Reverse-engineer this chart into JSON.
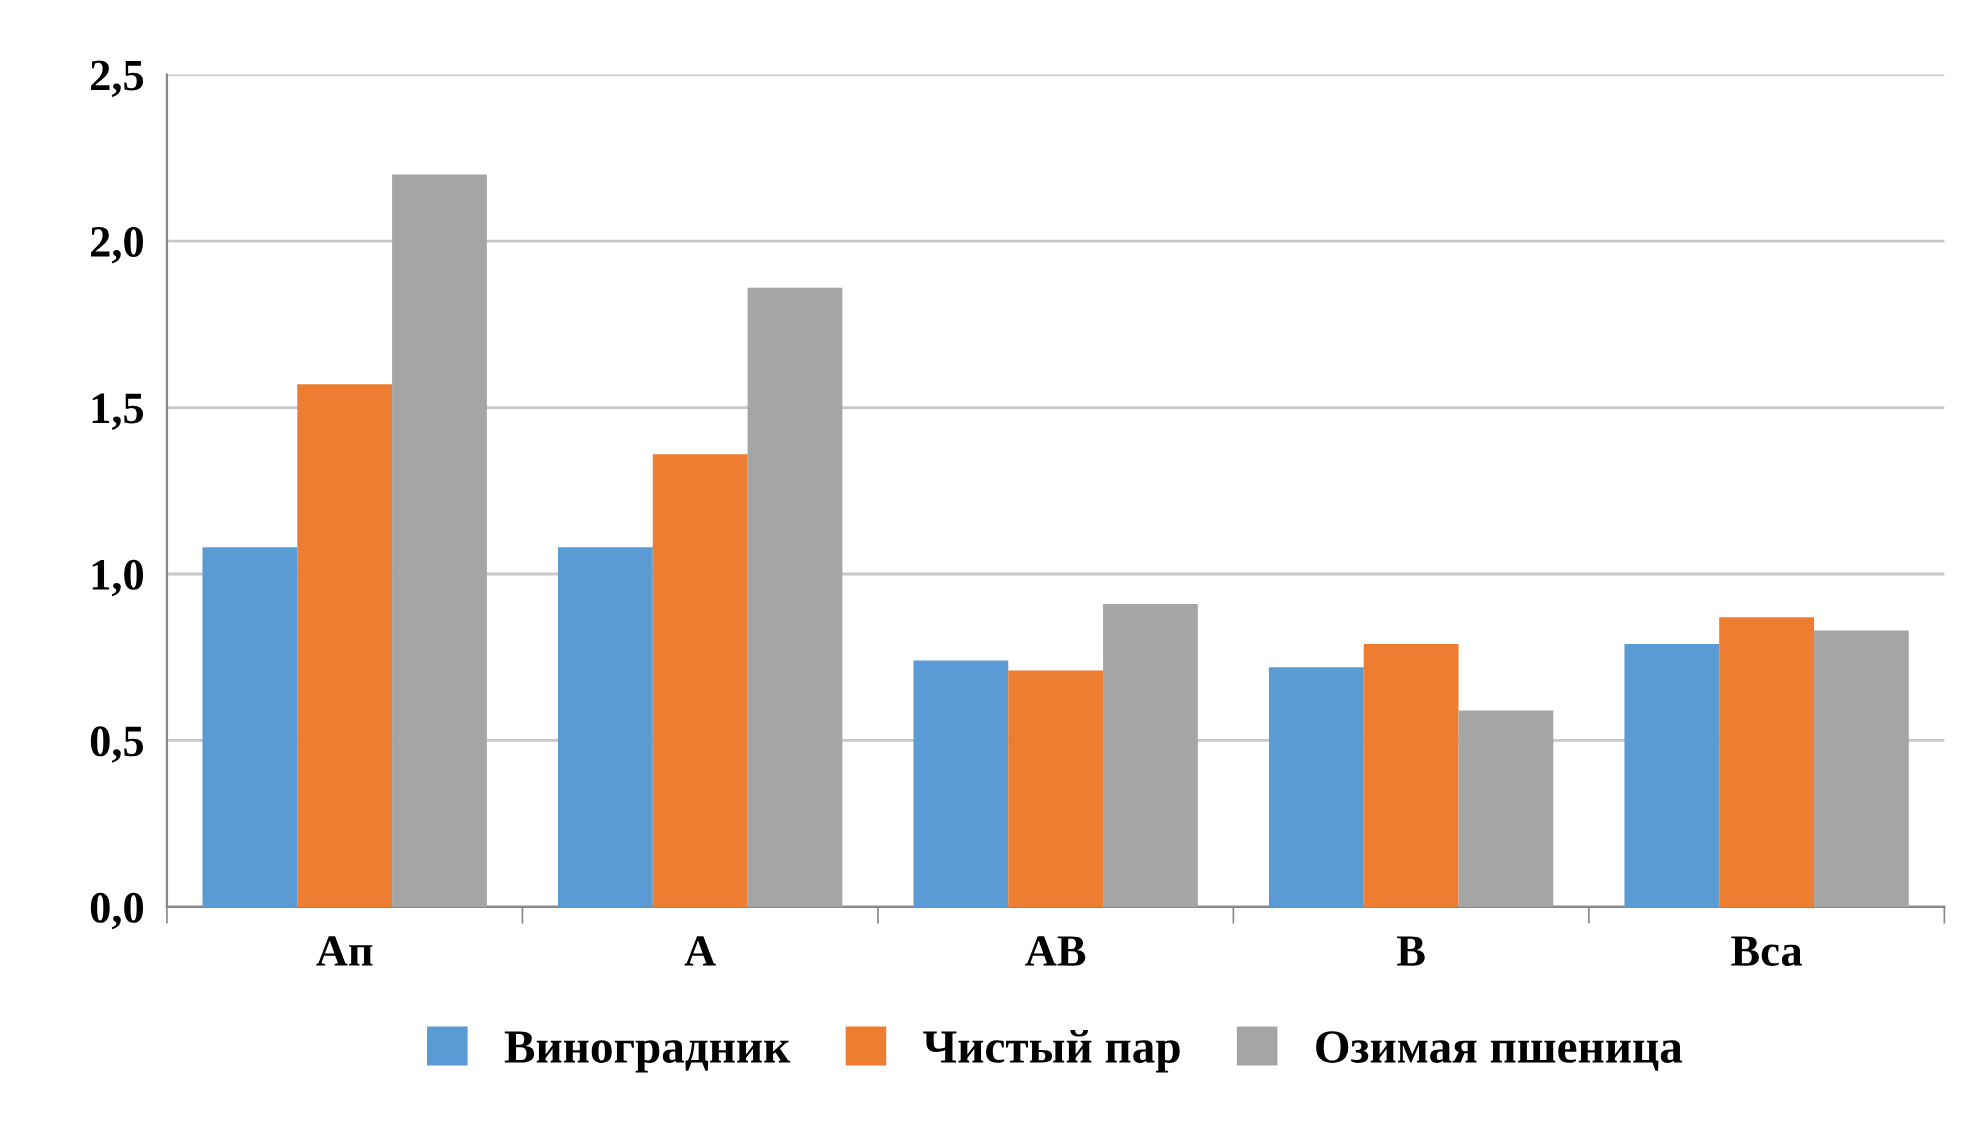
{
  "chart_data": {
    "type": "bar",
    "categories": [
      "Ап",
      "А",
      "АВ",
      "В",
      "Вса"
    ],
    "series": [
      {
        "name": "Виноградник",
        "color": "#5b9bd5",
        "values": [
          1.08,
          1.08,
          0.74,
          0.72,
          0.79
        ]
      },
      {
        "name": "Чистый пар",
        "color": "#ed7d31",
        "values": [
          1.57,
          1.36,
          0.71,
          0.79,
          0.87
        ]
      },
      {
        "name": "Озимая пшеница",
        "color": "#a5a5a5",
        "values": [
          2.2,
          1.86,
          0.91,
          0.59,
          0.83
        ]
      }
    ],
    "ylim": [
      0,
      2.5
    ],
    "yticks": [
      {
        "value": 0,
        "label": "0,0"
      },
      {
        "value": 0.5,
        "label": "0,5"
      },
      {
        "value": 1,
        "label": "1,0"
      },
      {
        "value": 1.5,
        "label": "1,5"
      },
      {
        "value": 2,
        "label": "2,0"
      },
      {
        "value": 2.5,
        "label": "2,5"
      }
    ],
    "grid": "y",
    "legend": "bottom"
  }
}
